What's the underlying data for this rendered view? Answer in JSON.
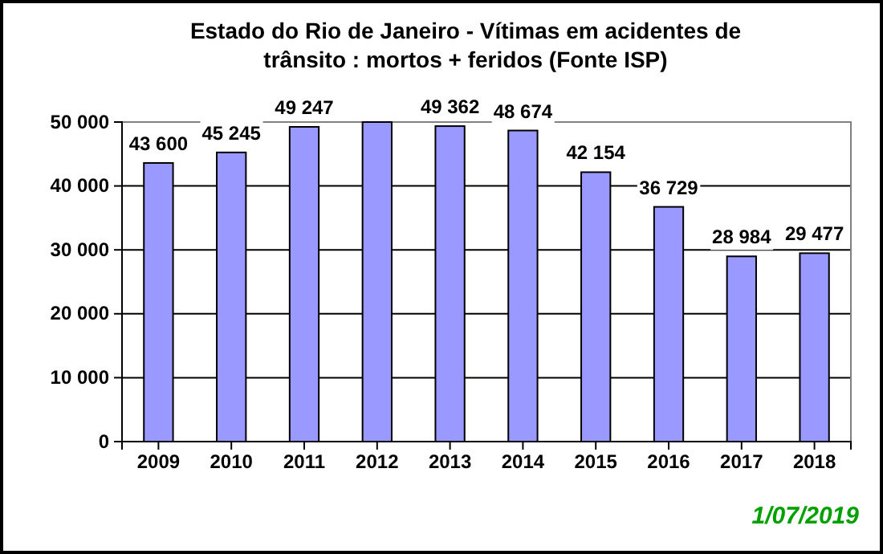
{
  "chart_data": {
    "type": "bar",
    "title": "Estado do Rio de Janeiro - Vítimas  em acidentes de trânsito : mortos + feridos (Fonte ISP)",
    "categories": [
      "2009",
      "2010",
      "2011",
      "2012",
      "2013",
      "2014",
      "2015",
      "2016",
      "2017",
      "2018"
    ],
    "values": [
      43600,
      45245,
      49247,
      50000,
      49362,
      48674,
      42154,
      36729,
      28984,
      29477
    ],
    "value_labels": [
      "43 600",
      "45 245",
      "49 247",
      null,
      "49 362",
      "48 674",
      "42 154",
      "36 729",
      "28 984",
      "29 477"
    ],
    "color": "#9999ff",
    "ylim": [
      0,
      50000
    ],
    "yticks": [
      {
        "value": 0,
        "label": "0"
      },
      {
        "value": 10000,
        "label": "10 000"
      },
      {
        "value": 20000,
        "label": "20 000"
      },
      {
        "value": 30000,
        "label": "30 000"
      },
      {
        "value": 40000,
        "label": "40 000"
      },
      {
        "value": 50000,
        "label": "50 000"
      }
    ],
    "grid": "y",
    "annotations": [
      "1/07/2019"
    ]
  }
}
